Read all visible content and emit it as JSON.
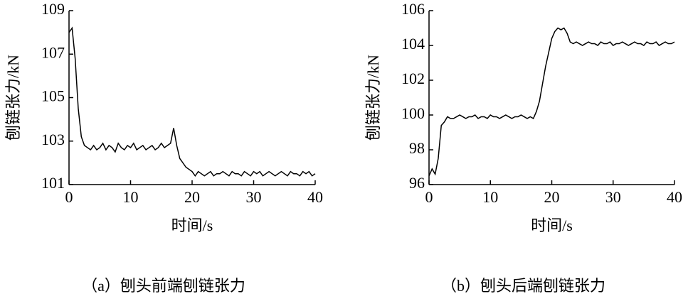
{
  "chart_data": [
    {
      "type": "line",
      "caption": "（a）刨头前端刨链张力",
      "x_label": "时间/s",
      "y_label": "刨链张力/kN",
      "xlim": [
        0,
        40
      ],
      "xticks": [
        0,
        10,
        20,
        30,
        40
      ],
      "ylim": [
        101,
        109
      ],
      "yticks": [
        101,
        103,
        105,
        107,
        109
      ],
      "x": [
        0,
        0.5,
        1,
        1.5,
        2,
        2.5,
        3,
        3.5,
        4,
        4.5,
        5,
        5.5,
        6,
        6.5,
        7,
        7.5,
        8,
        8.5,
        9,
        9.5,
        10,
        10.5,
        11,
        11.5,
        12,
        12.5,
        13,
        13.5,
        14,
        14.5,
        15,
        15.5,
        16,
        16.5,
        17,
        17.5,
        18,
        18.5,
        19,
        19.5,
        20,
        20.5,
        21,
        21.5,
        22,
        22.5,
        23,
        23.5,
        24,
        24.5,
        25,
        25.5,
        26,
        26.5,
        27,
        27.5,
        28,
        28.5,
        29,
        29.5,
        30,
        30.5,
        31,
        31.5,
        32,
        32.5,
        33,
        33.5,
        34,
        34.5,
        35,
        35.5,
        36,
        36.5,
        37,
        37.5,
        38,
        38.5,
        39,
        39.5,
        40
      ],
      "series": [
        {
          "color": "#000000",
          "values": [
            108.0,
            108.2,
            106.8,
            104.5,
            103.2,
            102.8,
            102.7,
            102.6,
            102.8,
            102.6,
            102.7,
            102.9,
            102.6,
            102.8,
            102.7,
            102.5,
            102.9,
            102.7,
            102.6,
            102.8,
            102.7,
            102.9,
            102.6,
            102.7,
            102.8,
            102.6,
            102.7,
            102.8,
            102.6,
            102.7,
            102.9,
            102.7,
            102.8,
            102.9,
            103.6,
            102.8,
            102.2,
            102.0,
            101.8,
            101.7,
            101.6,
            101.4,
            101.6,
            101.5,
            101.4,
            101.5,
            101.6,
            101.4,
            101.5,
            101.5,
            101.6,
            101.5,
            101.4,
            101.6,
            101.5,
            101.5,
            101.4,
            101.6,
            101.5,
            101.4,
            101.6,
            101.5,
            101.6,
            101.4,
            101.5,
            101.6,
            101.5,
            101.4,
            101.5,
            101.6,
            101.5,
            101.4,
            101.6,
            101.5,
            101.5,
            101.4,
            101.6,
            101.5,
            101.6,
            101.4,
            101.5
          ]
        }
      ]
    },
    {
      "type": "line",
      "caption": "（b）刨头后端刨链张力",
      "x_label": "时间/s",
      "y_label": "刨链张力/kN",
      "xlim": [
        0,
        40
      ],
      "xticks": [
        0,
        10,
        20,
        30,
        40
      ],
      "ylim": [
        96,
        106
      ],
      "yticks": [
        96,
        98,
        100,
        102,
        104,
        106
      ],
      "x": [
        0,
        0.5,
        1,
        1.5,
        2,
        2.5,
        3,
        3.5,
        4,
        4.5,
        5,
        5.5,
        6,
        6.5,
        7,
        7.5,
        8,
        8.5,
        9,
        9.5,
        10,
        10.5,
        11,
        11.5,
        12,
        12.5,
        13,
        13.5,
        14,
        14.5,
        15,
        15.5,
        16,
        16.5,
        17,
        17.5,
        18,
        18.5,
        19,
        19.5,
        20,
        20.5,
        21,
        21.5,
        22,
        22.5,
        23,
        23.5,
        24,
        24.5,
        25,
        25.5,
        26,
        26.5,
        27,
        27.5,
        28,
        28.5,
        29,
        29.5,
        30,
        30.5,
        31,
        31.5,
        32,
        32.5,
        33,
        33.5,
        34,
        34.5,
        35,
        35.5,
        36,
        36.5,
        37,
        37.5,
        38,
        38.5,
        39,
        39.5,
        40
      ],
      "series": [
        {
          "color": "#000000",
          "values": [
            96.5,
            96.9,
            96.6,
            97.5,
            99.4,
            99.6,
            99.9,
            99.8,
            99.8,
            99.9,
            100.0,
            99.9,
            99.8,
            99.9,
            99.9,
            100.0,
            99.8,
            99.9,
            99.9,
            99.8,
            100.0,
            99.9,
            99.9,
            99.8,
            99.9,
            100.0,
            99.9,
            99.8,
            99.9,
            99.9,
            100.0,
            99.9,
            99.8,
            99.9,
            99.8,
            100.2,
            100.8,
            101.8,
            102.8,
            103.6,
            104.4,
            104.8,
            105.0,
            104.9,
            105.0,
            104.7,
            104.2,
            104.1,
            104.2,
            104.1,
            104.0,
            104.1,
            104.2,
            104.1,
            104.1,
            104.0,
            104.2,
            104.1,
            104.1,
            104.2,
            104.0,
            104.1,
            104.1,
            104.2,
            104.1,
            104.0,
            104.1,
            104.2,
            104.1,
            104.1,
            104.0,
            104.2,
            104.1,
            104.1,
            104.2,
            104.0,
            104.1,
            104.2,
            104.1,
            104.1,
            104.2
          ]
        }
      ]
    }
  ]
}
